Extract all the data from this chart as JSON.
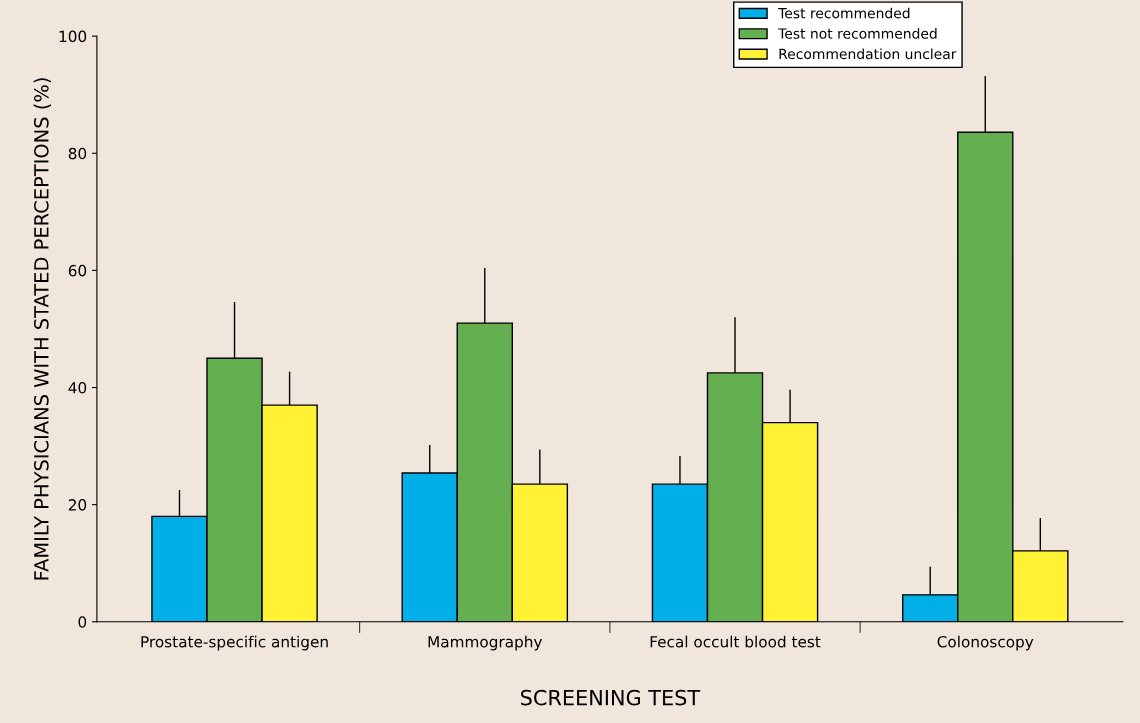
{
  "chart_data": {
    "type": "bar",
    "xlabel": "SCREENING TEST",
    "ylabel": "FAMILY PHYSICIANS WITH STATED PERCEPTIONS (%)",
    "categories": [
      "Prostate-specific antigen",
      "Mammography",
      "Fecal occult blood test",
      "Colonoscopy"
    ],
    "series": [
      {
        "name": "Test recommended",
        "color": "#00aee8",
        "values": [
          18,
          25.4,
          23.5,
          4.6
        ],
        "errors": [
          [
            18,
            22.5
          ],
          [
            25.4,
            30.2
          ],
          [
            23.5,
            28.3
          ],
          [
            4.6,
            9.4
          ]
        ]
      },
      {
        "name": "Test not recommended",
        "color": "#64b050",
        "values": [
          45,
          51,
          42.5,
          83.6
        ],
        "errors": [
          [
            45,
            54.6
          ],
          [
            51,
            60.4
          ],
          [
            42.5,
            52
          ],
          [
            83.6,
            93.2
          ]
        ]
      },
      {
        "name": "Recommendation unclear",
        "color": "#fff133",
        "values": [
          37,
          23.5,
          34,
          12.1
        ],
        "errors": [
          [
            37,
            42.7
          ],
          [
            23.5,
            29.4
          ],
          [
            34,
            39.6
          ],
          [
            12.1,
            17.7
          ]
        ]
      }
    ],
    "ylim": [
      0,
      100
    ],
    "yticks": [
      0,
      20,
      40,
      60,
      80,
      100
    ],
    "grid": false,
    "legend": "top right"
  }
}
